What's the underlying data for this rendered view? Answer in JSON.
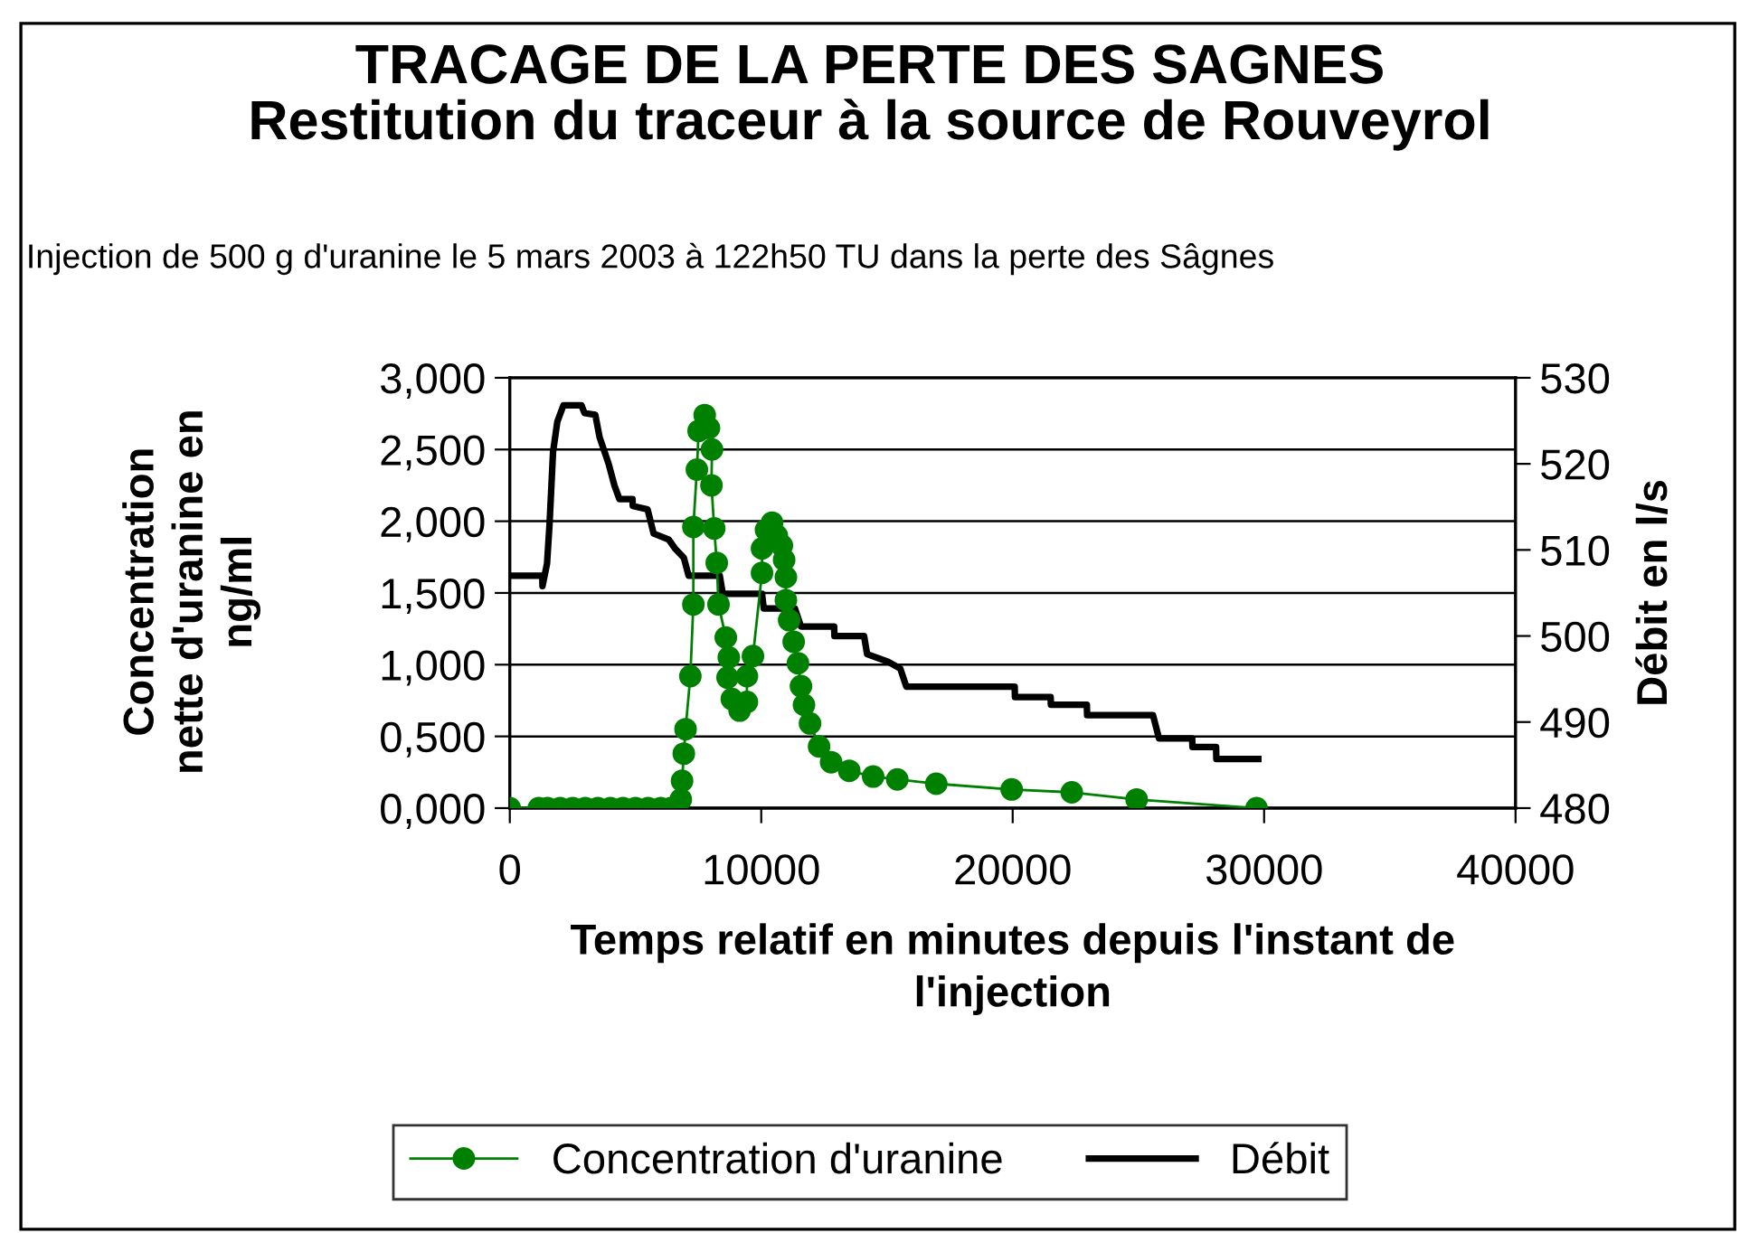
{
  "chart_data": {
    "type": "line",
    "title": "TRACAGE DE LA PERTE DES SAGNES\nRestitution du traceur à la source de Rouveyrol",
    "subtitle": "Injection de 500 g d'uranine le 5 mars 2003 à 122h50 TU dans la perte des Sâgnes",
    "xlabel": "Temps relatif en minutes depuis l'instant de\nl'injection",
    "ylabel": "Concentration\nnette d'uranine en\nng/ml",
    "y2label": "Débit en l/s",
    "xlim": [
      0,
      40000
    ],
    "xticks": [
      0,
      10000,
      20000,
      30000,
      40000
    ],
    "ylim": [
      0,
      3
    ],
    "yticks": [
      {
        "value": 0,
        "label": "0,000"
      },
      {
        "value": 0.5,
        "label": "0,500"
      },
      {
        "value": 1,
        "label": "1,000"
      },
      {
        "value": 1.5,
        "label": "1,500"
      },
      {
        "value": 2,
        "label": "2,000"
      },
      {
        "value": 2.5,
        "label": "2,500"
      },
      {
        "value": 3,
        "label": "3,000"
      }
    ],
    "y2lim": [
      480,
      530
    ],
    "y2ticks": [
      480,
      490,
      500,
      510,
      520,
      530
    ],
    "grid": "y",
    "legend": "bottom",
    "series": [
      {
        "name": "Concentration d'uranine",
        "color": "#008000",
        "marker": "circle",
        "x": [
          0,
          1150,
          1500,
          2000,
          2500,
          3000,
          3500,
          4000,
          4500,
          5000,
          5500,
          6000,
          6400,
          6800,
          6850,
          6920,
          6990,
          7180,
          7300,
          7300,
          7440,
          7510,
          7750,
          7920,
          8040,
          8020,
          8130,
          8230,
          8300,
          8590,
          8710,
          8660,
          8830,
          9140,
          9430,
          9430,
          9670,
          10030,
          10030,
          10190,
          10430,
          10620,
          10820,
          10910,
          10980,
          10980,
          11110,
          11290,
          11460,
          11580,
          11700,
          11940,
          12300,
          12780,
          13500,
          14450,
          15410,
          16960,
          19960,
          22350,
          24930,
          29700
        ],
        "values": [
          0,
          0,
          0,
          0,
          0,
          0,
          0,
          0,
          0,
          0,
          0,
          0,
          0,
          0.06,
          0.19,
          0.38,
          0.55,
          0.92,
          1.42,
          1.96,
          2.36,
          2.63,
          2.74,
          2.65,
          2.5,
          2.25,
          1.95,
          1.71,
          1.42,
          1.19,
          1.05,
          0.91,
          0.76,
          0.68,
          0.74,
          0.92,
          1.06,
          1.64,
          1.81,
          1.94,
          1.99,
          1.9,
          1.83,
          1.73,
          1.61,
          1.45,
          1.31,
          1.16,
          1.01,
          0.85,
          0.72,
          0.59,
          0.43,
          0.32,
          0.26,
          0.22,
          0.2,
          0.17,
          0.13,
          0.11,
          0.06,
          0
        ]
      },
      {
        "name": "Débit",
        "color": "#000000",
        "marker": "none",
        "axis": "y2",
        "x": [
          0,
          1290,
          1300,
          1480,
          1580,
          1720,
          1890,
          2130,
          2850,
          2970,
          3400,
          3570,
          3930,
          4160,
          4360,
          4880,
          4890,
          5480,
          5600,
          5720,
          6320,
          6560,
          6920,
          7110,
          8350,
          8470,
          10030,
          10100,
          11340,
          11580,
          12900,
          12910,
          14090,
          14210,
          15050,
          15530,
          15770,
          20080,
          20090,
          21510,
          21520,
          22950,
          22960,
          25580,
          25820,
          27140,
          27150,
          28090,
          28100,
          29770
        ],
        "values": [
          507.0,
          507.0,
          505.8,
          508.4,
          513.0,
          521.4,
          524.9,
          526.8,
          526.8,
          525.9,
          525.7,
          523.1,
          520.0,
          517.5,
          515.9,
          515.9,
          515.1,
          514.7,
          513.3,
          511.9,
          511.2,
          510.2,
          509.1,
          507.0,
          507.0,
          504.9,
          504.9,
          503.2,
          503.2,
          501.1,
          501.1,
          500.0,
          500.0,
          497.9,
          497.0,
          496.2,
          494.1,
          494.1,
          492.9,
          492.9,
          492.0,
          492.0,
          490.8,
          490.8,
          488.1,
          488.1,
          487.1,
          487.1,
          485.7,
          485.7
        ]
      }
    ]
  }
}
